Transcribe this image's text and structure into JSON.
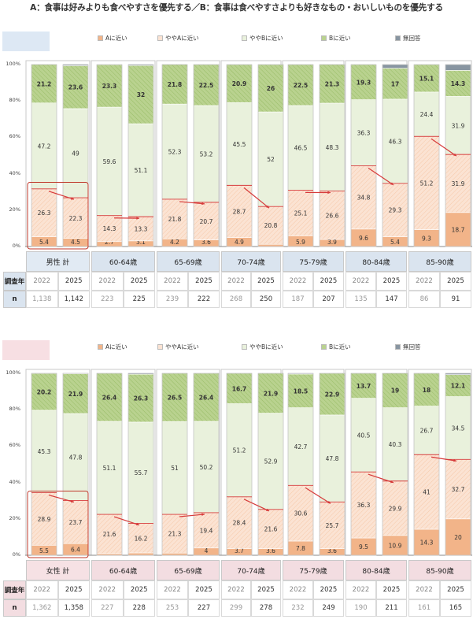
{
  "title": "A：食事は好みよりも食べやすさを優先する／B：食事は食べやすさよりも好きなもの・おいしいものを優先する",
  "legend": [
    {
      "label": "Aに近い",
      "color": "#f2b489"
    },
    {
      "label": "ややAに近い",
      "color": "#fbe3d3"
    },
    {
      "label": "ややBに近い",
      "color": "#e9f1dc"
    },
    {
      "label": "Bに近い",
      "color": "#b9d28f"
    },
    {
      "label": "無回答",
      "color": "#8895a1"
    }
  ],
  "axis_ticks": [
    "0%",
    "20%",
    "40%",
    "60%",
    "80%",
    "100%"
  ],
  "table_labels": {
    "survey_year": "調査年",
    "n": "n"
  },
  "chart_data": [
    {
      "type": "bar",
      "stacked": true,
      "gender": "男 性",
      "ylim": [
        0,
        100
      ],
      "groups": [
        "男性 計",
        "60-64歳",
        "65-69歳",
        "70-74歳",
        "75-79歳",
        "80-84歳",
        "85-90歳"
      ],
      "years": [
        "2022",
        "2025",
        "2022",
        "2025",
        "2022",
        "2025",
        "2022",
        "2025",
        "2022",
        "2025",
        "2022",
        "2025",
        "2022",
        "2025"
      ],
      "n": [
        "1,138",
        "1,142",
        "223",
        "225",
        "239",
        "222",
        "268",
        "250",
        "187",
        "207",
        "135",
        "147",
        "86",
        "91"
      ],
      "series": [
        {
          "name": "Aに近い",
          "values": [
            5.4,
            4.5,
            2.7,
            3.1,
            4.2,
            3.6,
            4.9,
            1.2,
            5.9,
            3.9,
            9.6,
            5.4,
            9.3,
            18.7
          ]
        },
        {
          "name": "ややAに近い",
          "values": [
            26.3,
            22.3,
            14.3,
            13.3,
            21.8,
            20.7,
            28.7,
            20.8,
            25.1,
            26.6,
            34.8,
            29.3,
            51.2,
            31.9
          ]
        },
        {
          "name": "ややBに近い",
          "values": [
            47.2,
            49.0,
            59.6,
            51.1,
            52.3,
            53.2,
            45.5,
            52.0,
            46.5,
            48.3,
            36.3,
            46.3,
            24.4,
            31.9
          ]
        },
        {
          "name": "Bに近い",
          "values": [
            21.2,
            23.6,
            23.3,
            32.0,
            21.8,
            22.5,
            20.9,
            26.0,
            22.5,
            21.3,
            19.3,
            17.0,
            15.1,
            14.3
          ]
        }
      ]
    },
    {
      "type": "bar",
      "stacked": true,
      "gender": "女 性",
      "ylim": [
        0,
        100
      ],
      "groups": [
        "女性 計",
        "60-64歳",
        "65-69歳",
        "70-74歳",
        "75-79歳",
        "80-84歳",
        "85-90歳"
      ],
      "years": [
        "2022",
        "2025",
        "2022",
        "2025",
        "2022",
        "2025",
        "2022",
        "2025",
        "2022",
        "2025",
        "2022",
        "2025",
        "2022",
        "2025"
      ],
      "n": [
        "1,362",
        "1,358",
        "227",
        "228",
        "253",
        "227",
        "299",
        "278",
        "232",
        "249",
        "190",
        "211",
        "161",
        "165"
      ],
      "series": [
        {
          "name": "Aに近い",
          "values": [
            5.5,
            6.4,
            0.9,
            1.3,
            1.2,
            4.0,
            3.7,
            3.6,
            7.8,
            3.6,
            9.5,
            10.9,
            14.3,
            20.0
          ]
        },
        {
          "name": "ややAに近い",
          "values": [
            28.9,
            23.7,
            21.6,
            16.2,
            21.3,
            19.4,
            28.4,
            21.6,
            30.6,
            25.7,
            36.3,
            29.9,
            41.0,
            32.7
          ]
        },
        {
          "name": "ややBに近い",
          "values": [
            45.3,
            47.8,
            51.1,
            55.7,
            51.0,
            50.2,
            51.2,
            52.9,
            42.7,
            47.8,
            40.5,
            40.3,
            26.7,
            34.5
          ]
        },
        {
          "name": "Bに近い",
          "values": [
            20.2,
            21.9,
            26.4,
            26.3,
            26.5,
            26.4,
            16.7,
            21.9,
            18.5,
            22.9,
            13.7,
            19.0,
            18.0,
            12.1
          ]
        }
      ]
    }
  ]
}
